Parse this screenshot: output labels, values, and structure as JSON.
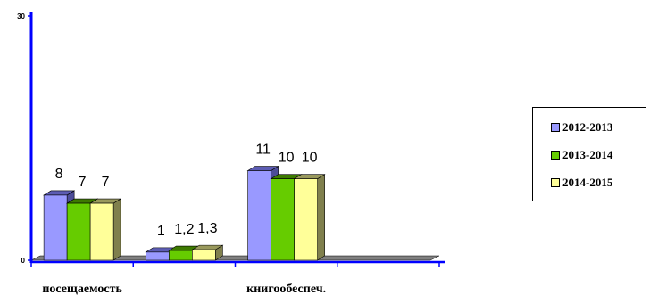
{
  "chart_data": {
    "type": "bar",
    "categories": [
      "посещаемость",
      "",
      "книгообеспеч.",
      ""
    ],
    "series": [
      {
        "name": "2012-2013",
        "values": [
          8,
          1,
          11,
          null
        ],
        "labels": [
          "8",
          "1",
          "11",
          ""
        ],
        "color": "#9999ff",
        "top_color": "#5c5cb3",
        "side_color": "#4d4d99"
      },
      {
        "name": "2013-2014",
        "values": [
          7,
          1.2,
          10,
          null
        ],
        "labels": [
          "7",
          "1,2",
          "10",
          ""
        ],
        "color": "#66cc00",
        "top_color": "#3d7a00",
        "side_color": "#2e5c00"
      },
      {
        "name": "2014-2015",
        "values": [
          7,
          1.3,
          10,
          null
        ],
        "labels": [
          "7",
          "1,3",
          "10",
          ""
        ],
        "color": "#ffff99",
        "top_color": "#99995c",
        "side_color": "#80804d"
      }
    ],
    "ylim": [
      0,
      30
    ],
    "yticks": [
      "0",
      "30"
    ],
    "xlabel": "",
    "ylabel": "",
    "title": "",
    "grid": false,
    "legend_position": "right",
    "axis_color": "#0000ff",
    "floor_color": "#808080"
  }
}
